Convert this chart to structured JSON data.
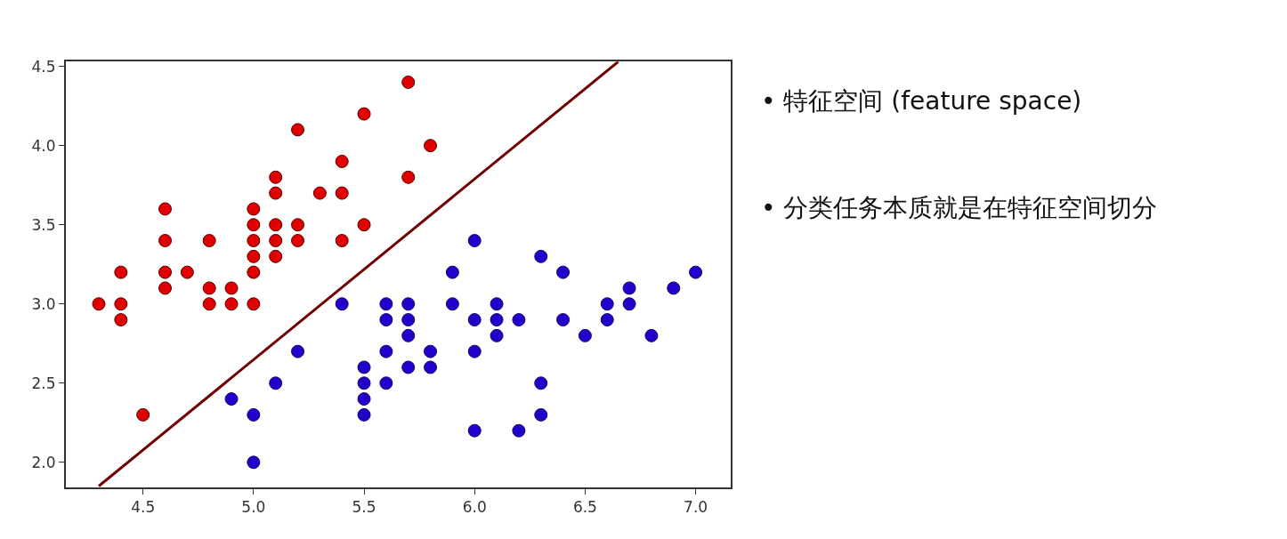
{
  "chart_data": {
    "type": "scatter",
    "annotations": [
      "• 特征空间 (feature space)",
      "• 分类任务本质就是在特征空间切分"
    ],
    "series": [
      {
        "color": "#e00000",
        "x": [
          4.3,
          4.4,
          4.4,
          4.4,
          4.5,
          4.6,
          4.6,
          4.6,
          4.6,
          4.7,
          4.8,
          4.8,
          4.8,
          4.9,
          4.9,
          5.0,
          5.0,
          5.0,
          5.0,
          5.0,
          5.0,
          5.1,
          5.1,
          5.1,
          5.1,
          5.1,
          5.2,
          5.2,
          5.2,
          5.3,
          5.4,
          5.4,
          5.4,
          5.5,
          5.5,
          5.7,
          5.7,
          5.8
        ],
        "values": [
          3.0,
          3.2,
          3.0,
          2.9,
          2.3,
          3.6,
          3.4,
          3.2,
          3.1,
          3.2,
          3.4,
          3.1,
          3.0,
          3.1,
          3.0,
          3.6,
          3.5,
          3.4,
          3.3,
          3.2,
          3.0,
          3.8,
          3.7,
          3.5,
          3.4,
          3.3,
          4.1,
          3.5,
          3.4,
          3.7,
          3.9,
          3.7,
          3.4,
          4.2,
          3.5,
          4.4,
          3.8,
          4.0
        ]
      },
      {
        "color": "#2200cc",
        "x": [
          4.9,
          5.0,
          5.0,
          5.1,
          5.2,
          5.4,
          5.5,
          5.5,
          5.5,
          5.5,
          5.6,
          5.6,
          5.6,
          5.6,
          5.7,
          5.7,
          5.7,
          5.7,
          5.8,
          5.8,
          5.9,
          5.9,
          6.0,
          6.0,
          6.0,
          6.0,
          6.1,
          6.1,
          6.1,
          6.2,
          6.2,
          6.3,
          6.3,
          6.3,
          6.4,
          6.4,
          6.5,
          6.6,
          6.6,
          6.7,
          6.7,
          6.8,
          6.9,
          7.0
        ],
        "values": [
          2.4,
          2.3,
          2.0,
          2.5,
          2.7,
          3.0,
          2.6,
          2.5,
          2.4,
          2.3,
          3.0,
          2.9,
          2.7,
          2.5,
          3.0,
          2.9,
          2.8,
          2.6,
          2.7,
          2.6,
          3.2,
          3.0,
          3.4,
          2.9,
          2.7,
          2.2,
          3.0,
          2.9,
          2.8,
          2.9,
          2.2,
          3.3,
          2.5,
          2.3,
          3.2,
          2.9,
          2.8,
          3.0,
          2.9,
          3.1,
          3.0,
          2.8,
          3.1,
          3.2
        ]
      },
      {
        "type": "line",
        "marker": "none",
        "color": "#700000",
        "x": [
          4.3,
          6.65
        ],
        "values": [
          1.85,
          4.53
        ]
      }
    ],
    "xlim": [
      4.15,
      7.16
    ],
    "ylim": [
      1.84,
      4.53
    ],
    "xticks": [
      4.5,
      {
        "value": 5,
        "label": "5.0"
      },
      5.5,
      {
        "value": 6,
        "label": "6.0"
      },
      6.5,
      {
        "value": 7,
        "label": "7.0"
      }
    ],
    "yticks": [
      {
        "value": 2,
        "label": "2.0"
      },
      2.5,
      {
        "value": 3,
        "label": "3.0"
      },
      3.5,
      {
        "value": 4,
        "label": "4.0"
      },
      4.5
    ],
    "marker": "circle",
    "grid": false,
    "legend": false
  }
}
